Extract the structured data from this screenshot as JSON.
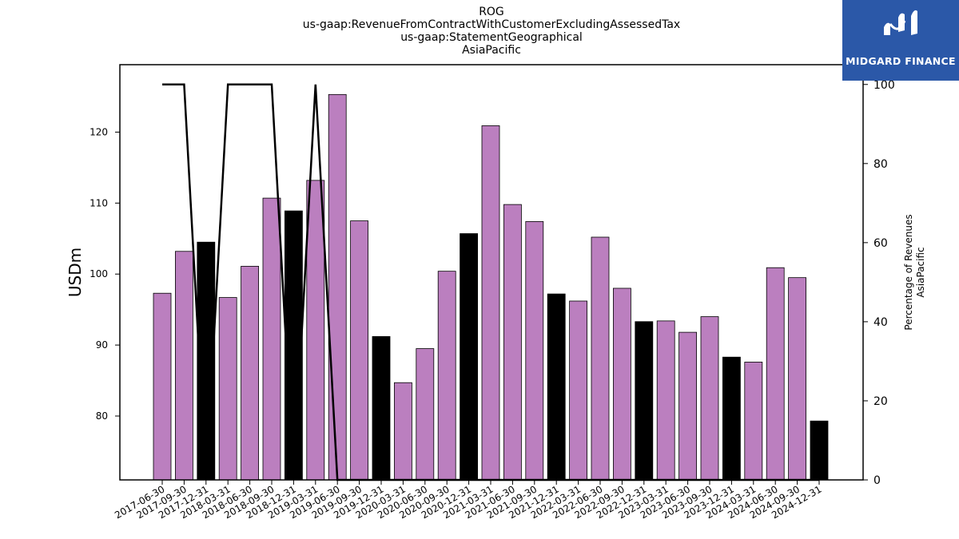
{
  "title_lines": [
    "ROG",
    "us-gaap:RevenueFromContractWithCustomerExcludingAssessedTax",
    "us-gaap:StatementGeographical",
    "AsiaPacific"
  ],
  "logo_text": "MIDGARD FINANCE",
  "colors": {
    "bar_regular": "#bb7fbf",
    "bar_highlight": "#000000",
    "line": "#000000"
  },
  "chart_data": {
    "type": "bar",
    "categories": [
      "2017-06-30",
      "2017-09-30",
      "2017-12-31",
      "2018-03-31",
      "2018-06-30",
      "2018-09-30",
      "2018-12-31",
      "2019-03-31",
      "2019-06-30",
      "2019-09-30",
      "2019-12-31",
      "2020-03-31",
      "2020-06-30",
      "2020-09-30",
      "2020-12-31",
      "2021-03-31",
      "2021-06-30",
      "2021-09-30",
      "2021-12-31",
      "2022-03-31",
      "2022-06-30",
      "2022-09-30",
      "2022-12-31",
      "2023-03-31",
      "2023-06-30",
      "2023-09-30",
      "2023-12-31",
      "2024-03-31",
      "2024-06-30",
      "2024-09-30",
      "2024-12-31"
    ],
    "values": [
      97.3,
      103.2,
      104.5,
      96.7,
      101.1,
      110.7,
      108.9,
      113.2,
      125.3,
      107.5,
      91.2,
      84.7,
      89.5,
      100.4,
      105.7,
      120.9,
      109.8,
      107.4,
      97.2,
      96.2,
      105.2,
      98.0,
      93.3,
      93.4,
      91.8,
      94.0,
      88.3,
      87.6,
      100.9,
      99.5,
      79.3
    ],
    "highlight": [
      false,
      false,
      true,
      false,
      false,
      false,
      true,
      false,
      false,
      false,
      true,
      false,
      false,
      false,
      true,
      false,
      false,
      false,
      true,
      false,
      false,
      false,
      true,
      false,
      false,
      false,
      true,
      false,
      false,
      false,
      true
    ],
    "ylabel": "USDm",
    "ylim": [
      71,
      129.5
    ],
    "yticks": [
      80,
      90,
      100,
      110,
      120
    ],
    "y2label_lines": [
      "Percentage of Revenues",
      "AsiaPacific"
    ],
    "y2lim": [
      0,
      105
    ],
    "y2ticks": [
      0,
      20,
      40,
      60,
      80,
      100
    ],
    "line_values": [
      100,
      100,
      0,
      100,
      100,
      100,
      0,
      100,
      0,
      0,
      0,
      0,
      0,
      0,
      0,
      0,
      0,
      0,
      0,
      0,
      0,
      0,
      0,
      0,
      0,
      0,
      0,
      0,
      0,
      0,
      0
    ]
  }
}
